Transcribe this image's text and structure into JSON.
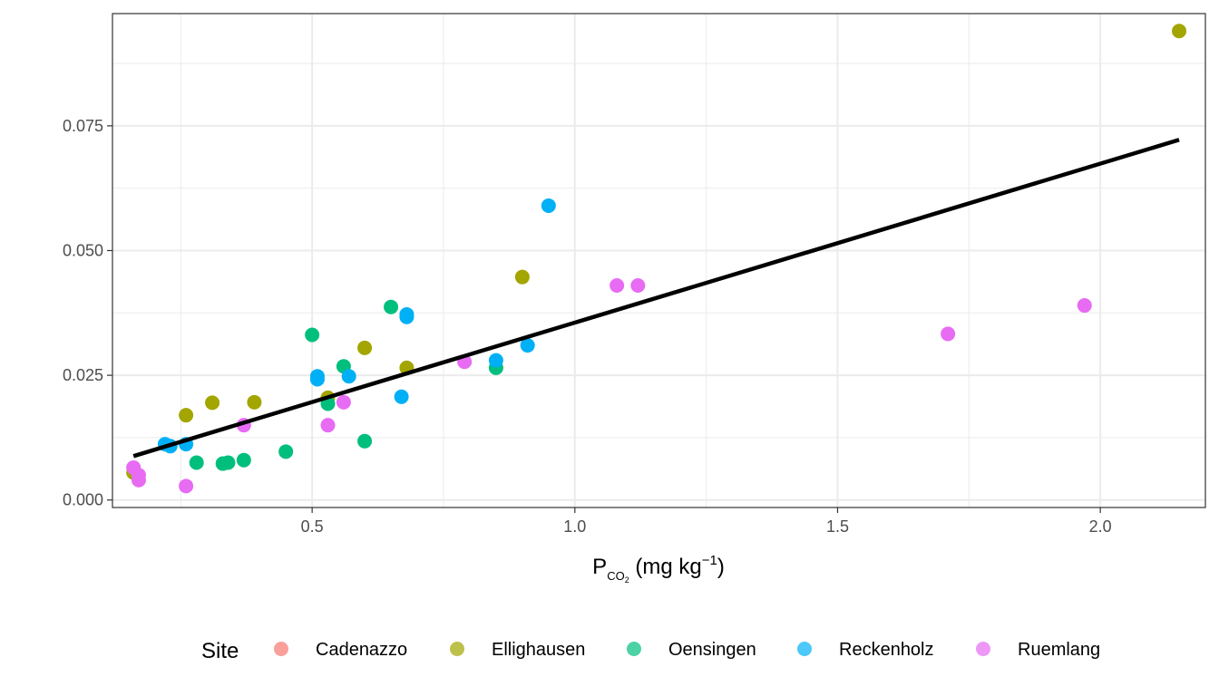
{
  "chart_data": {
    "type": "scatter",
    "title": "",
    "xlabel": {
      "main": "P",
      "sub": "CO",
      "subsub": "2",
      "rest": " (mg kg",
      "sup": "−1",
      "close": ")"
    },
    "ylabel": "",
    "xlim": [
      0.12,
      2.2
    ],
    "ylim": [
      -0.0015,
      0.0975
    ],
    "x_ticks": [
      0.5,
      1.0,
      1.5,
      2.0
    ],
    "x_tick_labels": [
      "0.5",
      "1.0",
      "1.5",
      "2.0"
    ],
    "x_minor": [
      0.25,
      0.75,
      1.25,
      1.75
    ],
    "y_ticks": [
      0.0,
      0.025,
      0.05,
      0.075
    ],
    "y_tick_labels": [
      "0.000",
      "0.025",
      "0.050",
      "0.075"
    ],
    "y_minor": [
      0.0125,
      0.0375,
      0.0625,
      0.0875
    ],
    "grid": true,
    "legend_title": "Site",
    "legend_position": "bottom",
    "series": [
      {
        "name": "Cadenazzo",
        "color": "#F8766D",
        "points": []
      },
      {
        "name": "Ellighausen",
        "color": "#A3A500",
        "points": [
          [
            0.16,
            0.0055
          ],
          [
            0.26,
            0.017
          ],
          [
            0.31,
            0.0195
          ],
          [
            0.39,
            0.0196
          ],
          [
            0.53,
            0.0205
          ],
          [
            0.6,
            0.0305
          ],
          [
            0.68,
            0.0265
          ],
          [
            0.9,
            0.0447
          ],
          [
            2.15,
            0.094
          ]
        ]
      },
      {
        "name": "Oensingen",
        "color": "#00BF7D",
        "points": [
          [
            0.28,
            0.0075
          ],
          [
            0.33,
            0.0073
          ],
          [
            0.34,
            0.0075
          ],
          [
            0.37,
            0.008
          ],
          [
            0.45,
            0.0097
          ],
          [
            0.5,
            0.0331
          ],
          [
            0.53,
            0.0193
          ],
          [
            0.56,
            0.0268
          ],
          [
            0.6,
            0.0118
          ],
          [
            0.65,
            0.0387
          ],
          [
            0.85,
            0.0265
          ]
        ]
      },
      {
        "name": "Reckenholz",
        "color": "#00B0F6",
        "points": [
          [
            0.22,
            0.0112
          ],
          [
            0.23,
            0.0108
          ],
          [
            0.26,
            0.0112
          ],
          [
            0.51,
            0.0248
          ],
          [
            0.51,
            0.0242
          ],
          [
            0.57,
            0.0248
          ],
          [
            0.67,
            0.0207
          ],
          [
            0.68,
            0.0372
          ],
          [
            0.68,
            0.0367
          ],
          [
            0.85,
            0.028
          ],
          [
            0.91,
            0.031
          ],
          [
            0.95,
            0.059
          ]
        ]
      },
      {
        "name": "Ruemlang",
        "color": "#E76BF3",
        "points": [
          [
            0.16,
            0.0065
          ],
          [
            0.17,
            0.005
          ],
          [
            0.17,
            0.004
          ],
          [
            0.26,
            0.0028
          ],
          [
            0.37,
            0.015
          ],
          [
            0.53,
            0.015
          ],
          [
            0.56,
            0.0196
          ],
          [
            0.79,
            0.0277
          ],
          [
            1.08,
            0.043
          ],
          [
            1.12,
            0.043
          ],
          [
            1.71,
            0.0333
          ],
          [
            1.97,
            0.039
          ]
        ]
      }
    ],
    "fit_line": {
      "color": "#000000",
      "points": [
        [
          0.16,
          0.0088
        ],
        [
          2.15,
          0.0722
        ]
      ]
    }
  }
}
